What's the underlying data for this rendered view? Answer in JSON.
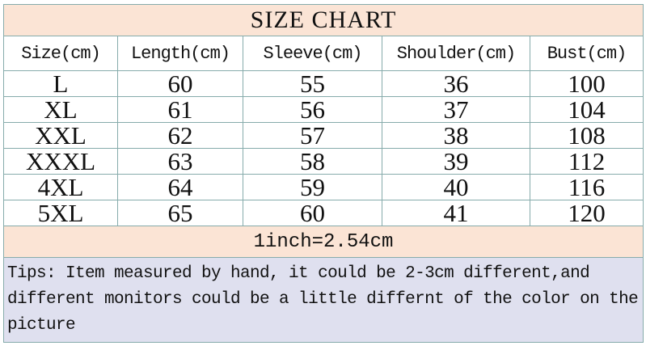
{
  "title": "SIZE CHART",
  "headers": [
    "Size(cm)",
    "Length(cm)",
    "Sleeve(cm)",
    "Shoulder(cm)",
    "Bust(cm)"
  ],
  "rows": [
    [
      "L",
      "60",
      "55",
      "36",
      "100"
    ],
    [
      "XL",
      "61",
      "56",
      "37",
      "104"
    ],
    [
      "XXL",
      "62",
      "57",
      "38",
      "108"
    ],
    [
      "XXXL",
      "63",
      "58",
      "39",
      "112"
    ],
    [
      "4XL",
      "64",
      "59",
      "40",
      "116"
    ],
    [
      "5XL",
      "65",
      "60",
      "41",
      "120"
    ]
  ],
  "conversion": "1inch=2.54cm",
  "tips": "Tips: Item measured by hand, it could be 2-3cm different,and different monitors could be a little differnt of the color on the picture",
  "colors": {
    "header_bg": "#fbe4d5",
    "tips_bg": "#dfe0ef",
    "border": "#86abab"
  }
}
